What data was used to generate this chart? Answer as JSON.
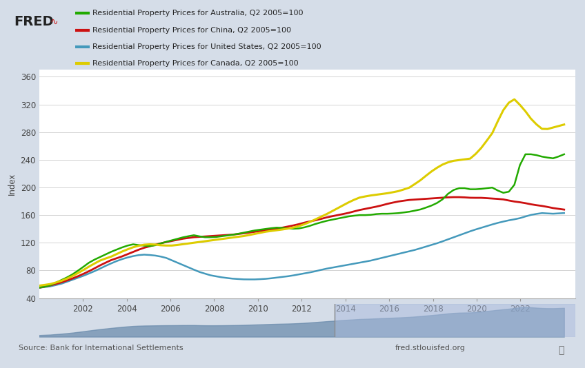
{
  "legend": [
    {
      "label": "Residential Property Prices for Australia, Q2 2005=100",
      "color": "#22aa00"
    },
    {
      "label": "Residential Property Prices for China, Q2 2005=100",
      "color": "#cc1111"
    },
    {
      "label": "Residential Property Prices for United States, Q2 2005=100",
      "color": "#4499bb"
    },
    {
      "label": "Residential Property Prices for Canada, Q2 2005=100",
      "color": "#ddcc00"
    }
  ],
  "ylabel": "Index",
  "ylim": [
    40,
    370
  ],
  "yticks": [
    40,
    80,
    120,
    160,
    200,
    240,
    280,
    320,
    360
  ],
  "source_text": "Source: Bank for International Settlements",
  "url_text": "fred.stlouisfed.org",
  "xtick_years": [
    2002,
    2004,
    2006,
    2008,
    2010,
    2012,
    2014,
    2016,
    2018,
    2020,
    2022
  ],
  "outer_bg": "#d5dde8",
  "header_bg": "#dce5ee",
  "plot_bg": "#ffffff",
  "nav_bg": "#c8d4e0",
  "aus_keys": [
    55,
    58,
    65,
    72,
    82,
    93,
    100,
    107,
    113,
    118,
    116,
    115,
    120,
    124,
    128,
    131,
    128,
    128,
    130,
    132,
    135,
    138,
    140,
    142,
    141,
    140,
    143,
    148,
    152,
    155,
    158,
    160,
    160,
    162,
    162,
    163,
    165,
    168,
    173,
    180,
    195,
    200,
    197,
    198,
    200,
    192,
    195,
    248,
    248,
    244,
    242,
    248
  ],
  "chi_keys": [
    55,
    58,
    62,
    67,
    73,
    80,
    88,
    95,
    100,
    106,
    112,
    116,
    120,
    123,
    126,
    128,
    129,
    130,
    131,
    132,
    134,
    136,
    138,
    140,
    143,
    146,
    150,
    153,
    157,
    160,
    163,
    167,
    170,
    173,
    177,
    180,
    182,
    183,
    184,
    185,
    186,
    186,
    185,
    185,
    184,
    183,
    180,
    178,
    175,
    173,
    170,
    168
  ],
  "usa_keys": [
    55,
    57,
    61,
    67,
    73,
    80,
    88,
    95,
    100,
    103,
    102,
    99,
    92,
    85,
    78,
    73,
    70,
    68,
    67,
    67,
    68,
    70,
    72,
    75,
    78,
    82,
    85,
    88,
    91,
    94,
    98,
    102,
    106,
    110,
    115,
    120,
    126,
    132,
    138,
    143,
    148,
    152,
    155,
    160,
    163,
    162,
    163
  ],
  "can_keys": [
    58,
    60,
    64,
    70,
    78,
    87,
    95,
    100,
    107,
    113,
    117,
    118,
    116,
    116,
    118,
    120,
    122,
    124,
    126,
    128,
    130,
    133,
    136,
    138,
    140,
    143,
    148,
    155,
    162,
    170,
    178,
    185,
    188,
    190,
    192,
    195,
    200,
    210,
    222,
    232,
    238,
    240,
    242,
    258,
    278,
    310,
    330,
    315,
    295,
    283,
    287,
    291
  ]
}
